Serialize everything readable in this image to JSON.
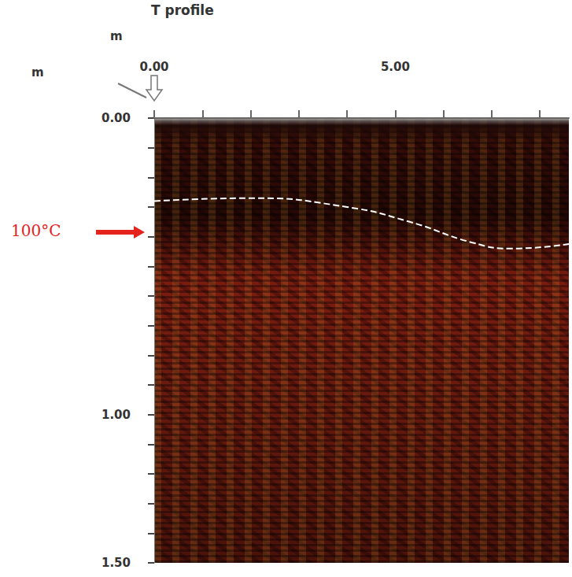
{
  "chart_data": {
    "type": "line",
    "title": "T profile",
    "xlabel": "m",
    "ylabel": "m",
    "x": [
      0,
      2.03,
      4.0,
      5.3,
      6.6,
      7.4,
      8.6
    ],
    "values": [
      0.28,
      0.27,
      0.3,
      0.35,
      0.42,
      0.44,
      0.425
    ],
    "color": "#ffffff",
    "line_style": "dashed",
    "xlim": [
      0,
      8.6
    ],
    "xticks": [
      {
        "value": 0,
        "label": "0.00"
      },
      {
        "value": 5,
        "label": "5.00"
      }
    ],
    "x_minor_ticks": [
      1,
      2,
      3,
      4,
      6,
      7,
      8
    ],
    "ylim": [
      0,
      1.5
    ],
    "yticks": [
      {
        "value": 0,
        "label": "0.00"
      },
      {
        "value": 1,
        "label": "1.00"
      },
      {
        "value": 1.5,
        "label": "1.50"
      }
    ],
    "y_minor_ticks": [
      0.1,
      0.2,
      0.3,
      0.4,
      0.5,
      0.6,
      0.7,
      0.8,
      0.9,
      1.1,
      1.2,
      1.3,
      1.4
    ],
    "annotations": [
      {
        "text": "100°C",
        "y": 0.385
      }
    ],
    "grid": false
  }
}
